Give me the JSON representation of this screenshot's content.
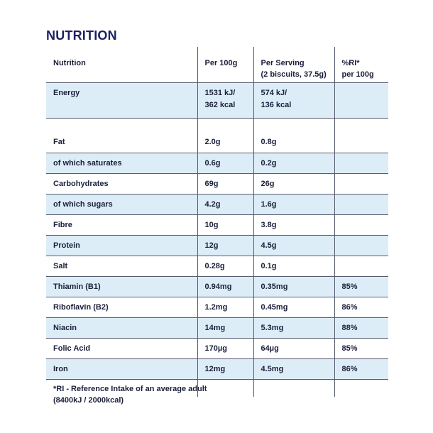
{
  "title": "NUTRITION",
  "headers": {
    "nutrition": "Nutrition",
    "per100": "Per 100g",
    "perServing": "Per Serving",
    "perServingNote": "(2 biscuits, 37.5g)",
    "ri": "%RI*",
    "riNote": "per 100g"
  },
  "energy": {
    "label": "Energy",
    "per100_kj": "1531 kJ/",
    "per100_kcal": "362 kcal",
    "serving_kj": "574 kJ/",
    "serving_kcal": "136 kcal",
    "ri": ""
  },
  "rows": [
    {
      "label": "Fat",
      "per100": "2.0g",
      "serving": "0.8g",
      "ri": ""
    },
    {
      "label": "of which saturates",
      "per100": "0.6g",
      "serving": "0.2g",
      "ri": ""
    },
    {
      "label": "Carbohydrates",
      "per100": "69g",
      "serving": "26g",
      "ri": ""
    },
    {
      "label": "of which sugars",
      "per100": "4.2g",
      "serving": "1.6g",
      "ri": ""
    },
    {
      "label": "Fibre",
      "per100": "10g",
      "serving": "3.8g",
      "ri": ""
    },
    {
      "label": "Protein",
      "per100": "12g",
      "serving": "4.5g",
      "ri": ""
    },
    {
      "label": "Salt",
      "per100": "0.28g",
      "serving": "0.1g",
      "ri": ""
    },
    {
      "label": "Thiamin (B1)",
      "per100": "0.94mg",
      "serving": "0.35mg",
      "ri": "85%"
    },
    {
      "label": "Riboflavin (B2)",
      "per100": "1.2mg",
      "serving": "0.45mg",
      "ri": "86%"
    },
    {
      "label": "Niacin",
      "per100": "14mg",
      "serving": "5.3mg",
      "ri": "88%"
    },
    {
      "label": "Folic Acid",
      "per100": "170µg",
      "serving": "64µg",
      "ri": "85%"
    },
    {
      "label": "Iron",
      "per100": "12mg",
      "serving": "4.5mg",
      "ri": "86%"
    }
  ],
  "footnote": "*RI - Reference Intake of an average adult (8400kJ / 2000kcal)"
}
